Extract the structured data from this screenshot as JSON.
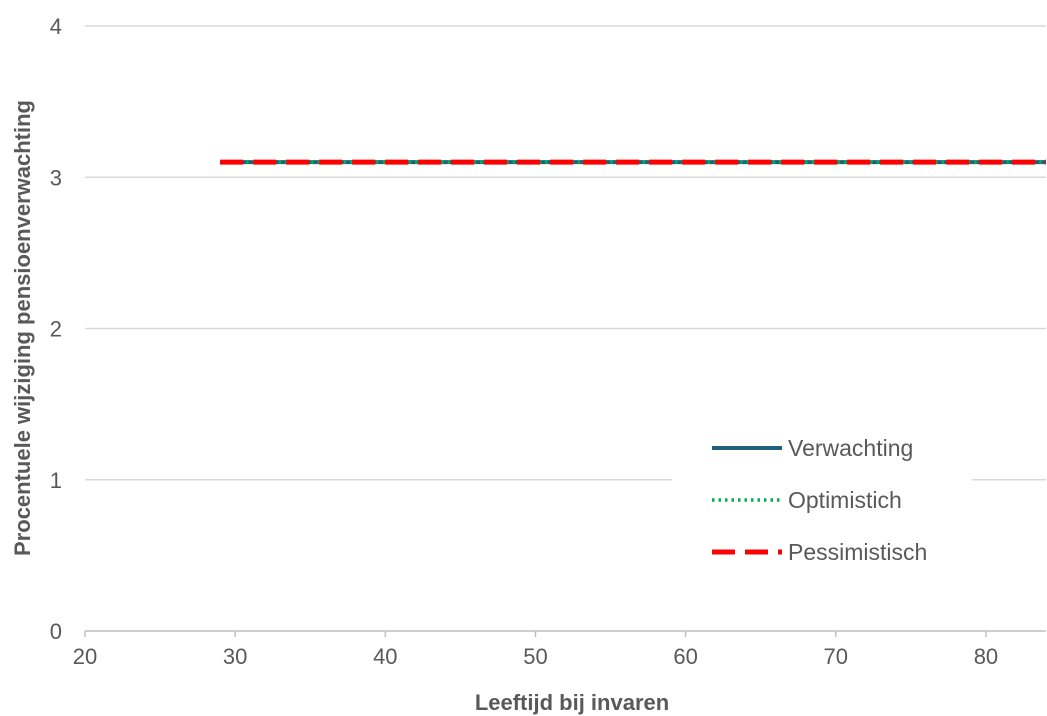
{
  "chart_data": {
    "type": "line",
    "xlabel": "Leeftijd bij invaren",
    "ylabel": "Procentuele wijziging pensioenverwachting",
    "xlim": [
      20,
      84
    ],
    "ylim": [
      0,
      4
    ],
    "x_ticks": [
      "20",
      "30",
      "40",
      "50",
      "60",
      "70",
      "80"
    ],
    "y_ticks": [
      "0",
      "1",
      "2",
      "3",
      "4"
    ],
    "grid": "horizontal",
    "legend_position": "bottom-right",
    "series": [
      {
        "name": "Verwachting",
        "style": "solid",
        "color": "#1F5F7F",
        "x": [
          29,
          84
        ],
        "y": [
          3.1,
          3.1
        ]
      },
      {
        "name": "Optimistich",
        "style": "dotted",
        "color": "#00B050",
        "x": [
          29,
          84
        ],
        "y": [
          3.1,
          3.1
        ]
      },
      {
        "name": "Pessimistisch",
        "style": "dashed",
        "color": "#FF0000",
        "x": [
          29,
          84
        ],
        "y": [
          3.1,
          3.1
        ]
      }
    ]
  }
}
